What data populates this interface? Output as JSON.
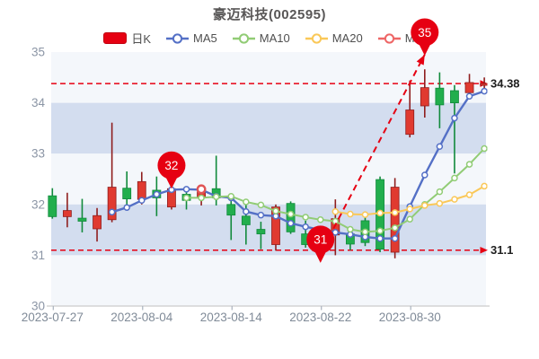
{
  "title": "豪迈科技(002595)",
  "legend": {
    "items": [
      {
        "label": "日K",
        "type": "rect",
        "color": "#e60012"
      },
      {
        "label": "MA5",
        "type": "line",
        "color": "#5470c6"
      },
      {
        "label": "MA10",
        "type": "line",
        "color": "#91cc75"
      },
      {
        "label": "MA20",
        "type": "line",
        "color": "#fac858"
      },
      {
        "label": "MA30",
        "type": "line",
        "color": "#ee6666"
      }
    ]
  },
  "chart_data": {
    "type": "candlestick",
    "title": "豪迈科技(002595)",
    "ylim": [
      30,
      35
    ],
    "y_ticks": [
      35,
      34,
      33,
      32,
      31,
      30
    ],
    "x_axis_labels": [
      {
        "index": 0,
        "label": "2023-07-27"
      },
      {
        "index": 6,
        "label": "2023-08-04"
      },
      {
        "index": 12,
        "label": "2023-08-14"
      },
      {
        "index": 18,
        "label": "2023-08-22"
      },
      {
        "index": 24,
        "label": "2023-08-30"
      }
    ],
    "candles": [
      {
        "date": "2023-07-27",
        "open": 32.17,
        "close": 31.76,
        "high": 32.32,
        "low": 31.72
      },
      {
        "date": "2023-07-28",
        "open": 31.76,
        "close": 31.88,
        "high": 32.23,
        "low": 31.55
      },
      {
        "date": "2023-07-31",
        "open": 31.73,
        "close": 31.67,
        "high": 32.11,
        "low": 31.45
      },
      {
        "date": "2023-08-01",
        "open": 31.52,
        "close": 31.78,
        "high": 31.93,
        "low": 31.27
      },
      {
        "date": "2023-08-02",
        "open": 31.7,
        "close": 32.34,
        "high": 33.61,
        "low": 31.65
      },
      {
        "date": "2023-08-03",
        "open": 32.32,
        "close": 32.11,
        "high": 32.65,
        "low": 31.9
      },
      {
        "date": "2023-08-04",
        "open": 32.1,
        "close": 32.45,
        "high": 32.64,
        "low": 32.0
      },
      {
        "date": "2023-08-07",
        "open": 32.28,
        "close": 32.13,
        "high": 32.55,
        "low": 31.77
      },
      {
        "date": "2023-08-08",
        "open": 31.95,
        "close": 32.31,
        "high": 32.38,
        "low": 31.9
      },
      {
        "date": "2023-08-09",
        "open": 32.2,
        "close": 32.08,
        "high": 32.26,
        "low": 31.9
      },
      {
        "date": "2023-08-10",
        "open": 32.14,
        "close": 32.26,
        "high": 32.34,
        "low": 31.98
      },
      {
        "date": "2023-08-11",
        "open": 32.31,
        "close": 32.13,
        "high": 32.96,
        "low": 31.98
      },
      {
        "date": "2023-08-14",
        "open": 32.0,
        "close": 31.79,
        "high": 32.1,
        "low": 31.3
      },
      {
        "date": "2023-08-15",
        "open": 31.77,
        "close": 31.6,
        "high": 32.05,
        "low": 31.21
      },
      {
        "date": "2023-08-16",
        "open": 31.51,
        "close": 31.42,
        "high": 31.66,
        "low": 31.12
      },
      {
        "date": "2023-08-17",
        "open": 31.21,
        "close": 31.95,
        "high": 32.0,
        "low": 31.09
      },
      {
        "date": "2023-08-18",
        "open": 32.02,
        "close": 31.46,
        "high": 32.06,
        "low": 31.42
      },
      {
        "date": "2023-08-21",
        "open": 31.42,
        "close": 31.21,
        "high": 31.68,
        "low": 31.15
      },
      {
        "date": "2023-08-22",
        "open": 31.05,
        "close": 31.45,
        "high": 31.55,
        "low": 30.88
      },
      {
        "date": "2023-08-23",
        "open": 31.4,
        "close": 31.72,
        "high": 32.1,
        "low": 31.0
      },
      {
        "date": "2023-08-24",
        "open": 31.42,
        "close": 31.22,
        "high": 31.52,
        "low": 31.1
      },
      {
        "date": "2023-08-25",
        "open": 31.68,
        "close": 31.25,
        "high": 31.75,
        "low": 31.18
      },
      {
        "date": "2023-08-28",
        "open": 32.49,
        "close": 31.12,
        "high": 32.55,
        "low": 31.06
      },
      {
        "date": "2023-08-29",
        "open": 31.06,
        "close": 32.34,
        "high": 32.52,
        "low": 30.94
      },
      {
        "date": "2023-08-30",
        "open": 33.38,
        "close": 33.86,
        "high": 34.44,
        "low": 33.32
      },
      {
        "date": "2023-08-31",
        "open": 33.94,
        "close": 34.3,
        "high": 34.66,
        "low": 33.71
      },
      {
        "date": "2023-09-01",
        "open": 34.29,
        "close": 33.96,
        "high": 34.6,
        "low": 33.5
      },
      {
        "date": "2023-09-04",
        "open": 34.24,
        "close": 34.0,
        "high": 34.35,
        "low": 32.61
      },
      {
        "date": "2023-09-05",
        "open": 34.2,
        "close": 34.4,
        "high": 34.57,
        "low": 34.15
      },
      {
        "date": "2023-09-06",
        "open": 34.35,
        "close": 34.38,
        "high": 34.5,
        "low": 34.28
      }
    ],
    "series": [
      {
        "name": "MA5",
        "color": "#5470c6",
        "width": 2.4,
        "values": [
          null,
          null,
          null,
          null,
          31.85,
          31.94,
          32.08,
          32.2,
          32.29,
          32.3,
          32.29,
          32.16,
          32.13,
          31.86,
          31.79,
          31.77,
          31.63,
          31.56,
          31.5,
          31.45,
          31.41,
          31.36,
          31.33,
          31.33,
          31.96,
          32.58,
          33.14,
          33.7,
          34.13,
          34.23
        ]
      },
      {
        "name": "MA10",
        "color": "#91cc75",
        "width": 2,
        "values": [
          null,
          null,
          null,
          null,
          null,
          null,
          null,
          null,
          null,
          32.13,
          32.13,
          32.15,
          32.16,
          32.05,
          31.99,
          31.87,
          31.81,
          31.75,
          31.7,
          31.67,
          31.51,
          31.46,
          31.48,
          31.54,
          31.71,
          32.0,
          32.25,
          32.52,
          32.79,
          33.1
        ]
      },
      {
        "name": "MA20",
        "color": "#fac858",
        "width": 2,
        "values": [
          null,
          null,
          null,
          null,
          null,
          null,
          null,
          null,
          null,
          null,
          null,
          null,
          null,
          null,
          null,
          null,
          null,
          null,
          null,
          31.86,
          31.81,
          31.8,
          31.83,
          31.84,
          31.91,
          31.98,
          32.02,
          32.1,
          32.19,
          32.36
        ]
      },
      {
        "name": "MA30",
        "color": "#ee6666",
        "width": 2,
        "values": [
          null,
          null,
          null,
          null,
          null,
          null,
          null,
          null,
          null,
          null,
          null,
          null,
          null,
          null,
          null,
          null,
          null,
          null,
          null,
          null,
          null,
          null,
          null,
          null,
          null,
          null,
          null,
          null,
          null,
          null
        ]
      }
    ],
    "marklines": [
      {
        "label": "34.38",
        "value": 34.38
      },
      {
        "label": "31.1",
        "value": 31.1
      }
    ],
    "callouts": [
      {
        "label": "32",
        "index": 8,
        "value": 32.31
      },
      {
        "label": "31",
        "index": 18,
        "value": 30.85
      },
      {
        "label": "35",
        "index": 25,
        "value": 34.93
      }
    ],
    "trendline": {
      "from": {
        "index": 18.2,
        "value": 31.15
      },
      "to": {
        "index": 25,
        "value": 34.95
      }
    },
    "annotation_dot": {
      "index": 10,
      "value": 32.3,
      "color": "#e05555"
    },
    "colors": {
      "up_body": "#e03a30",
      "up_wick": "#8f1e1e",
      "down_body": "#22ae4d",
      "down_wick": "#118a3c",
      "band_light": "#f4f7fb",
      "band_blue": "#d3ddef",
      "markline": "#e60012",
      "callout": "#e60012",
      "axis_label": "#8b95a5",
      "x_label": "#808b98",
      "axis_line": "#cccccc",
      "markline_label": "#1f1f1f"
    },
    "legend_position": "top",
    "grid": false
  }
}
